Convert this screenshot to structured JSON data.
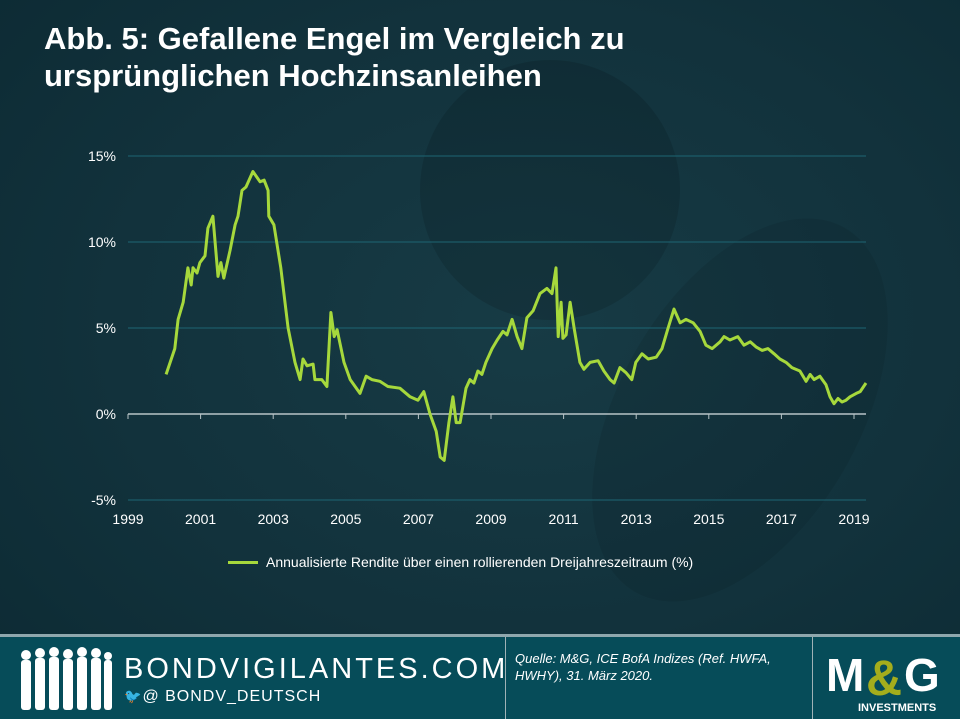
{
  "title": "Abb. 5: Gefallene Engel im Vergleich zu ursprünglichen Hochzinsanleihen",
  "chart_data": {
    "type": "line",
    "title": "Abb. 5: Gefallene Engel im Vergleich zu ursprünglichen Hochzinsanleihen",
    "xlabel": "",
    "ylabel": "",
    "xlim": [
      1999,
      2019.3
    ],
    "ylim": [
      -5,
      15
    ],
    "x_ticks": [
      "1999",
      "2001",
      "2003",
      "2005",
      "2007",
      "2009",
      "2011",
      "2013",
      "2015",
      "2017",
      "2019"
    ],
    "x_tick_values": [
      1999,
      2001,
      2003,
      2005,
      2007,
      2009,
      2011,
      2013,
      2015,
      2017,
      2019
    ],
    "y_ticks": [
      "15%",
      "10%",
      "5%",
      "0%",
      "-5%"
    ],
    "y_tick_values": [
      15,
      10,
      5,
      0,
      -5
    ],
    "grid": "horizontal",
    "legend_position": "bottom",
    "series": [
      {
        "name": "Annualisierte Rendite über einen rollierenden Dreijahreszeitraum (%)",
        "color": "#a6d83c",
        "x": [
          2000.05,
          2000.29,
          2000.38,
          2000.52,
          2000.65,
          2000.74,
          2000.79,
          2000.9,
          2000.98,
          2001.12,
          2001.2,
          2001.34,
          2001.48,
          2001.56,
          2001.64,
          2001.81,
          2001.95,
          2002.03,
          2002.14,
          2002.25,
          2002.44,
          2002.64,
          2002.75,
          2002.86,
          2002.88,
          2003.02,
          2003.21,
          2003.41,
          2003.6,
          2003.74,
          2003.82,
          2003.93,
          2004.1,
          2004.15,
          2004.34,
          2004.48,
          2004.59,
          2004.68,
          2004.76,
          2004.95,
          2005.12,
          2005.39,
          2005.56,
          2005.72,
          2005.94,
          2006.16,
          2006.49,
          2006.77,
          2006.99,
          2007.15,
          2007.32,
          2007.49,
          2007.6,
          2007.71,
          2007.84,
          2007.95,
          2008.04,
          2008.15,
          2008.31,
          2008.42,
          2008.53,
          2008.64,
          2008.75,
          2008.86,
          2009.03,
          2009.17,
          2009.33,
          2009.44,
          2009.58,
          2009.72,
          2009.85,
          2009.99,
          2010.16,
          2010.35,
          2010.54,
          2010.68,
          2010.79,
          2010.85,
          2010.93,
          2010.98,
          2011.07,
          2011.18,
          2011.29,
          2011.45,
          2011.56,
          2011.73,
          2011.95,
          2012.11,
          2012.28,
          2012.39,
          2012.55,
          2012.72,
          2012.88,
          2012.99,
          2013.16,
          2013.33,
          2013.55,
          2013.71,
          2013.88,
          2014.04,
          2014.21,
          2014.37,
          2014.57,
          2014.76,
          2014.92,
          2015.09,
          2015.31,
          2015.42,
          2015.58,
          2015.8,
          2015.97,
          2016.14,
          2016.3,
          2016.47,
          2016.63,
          2016.8,
          2016.96,
          2017.13,
          2017.29,
          2017.51,
          2017.68,
          2017.79,
          2017.9,
          2018.06,
          2018.23,
          2018.34,
          2018.45,
          2018.56,
          2018.67,
          2018.78,
          2018.89,
          2019.06,
          2019.17,
          2019.33
        ],
        "y": [
          2.3,
          3.8,
          5.5,
          6.5,
          8.5,
          7.5,
          8.5,
          8.2,
          8.8,
          9.2,
          10.8,
          11.5,
          8.0,
          8.8,
          7.9,
          9.5,
          11.0,
          11.5,
          13.0,
          13.2,
          14.1,
          13.5,
          13.6,
          13.0,
          11.5,
          11.0,
          8.5,
          5.0,
          3.0,
          2.0,
          3.2,
          2.8,
          2.9,
          2.0,
          2.0,
          1.6,
          5.9,
          4.5,
          4.9,
          3.0,
          2.0,
          1.2,
          2.2,
          2.0,
          1.9,
          1.6,
          1.5,
          1.0,
          0.8,
          1.3,
          0.0,
          -1.0,
          -2.5,
          -2.7,
          -0.5,
          1.0,
          -0.5,
          -0.5,
          1.5,
          2.0,
          1.8,
          2.5,
          2.3,
          3.0,
          3.8,
          4.3,
          4.8,
          4.6,
          5.5,
          4.5,
          3.8,
          5.6,
          6.0,
          7.0,
          7.3,
          7.0,
          8.5,
          4.5,
          6.5,
          4.4,
          4.6,
          6.5,
          5.0,
          3.0,
          2.6,
          3.0,
          3.1,
          2.5,
          2.0,
          1.8,
          2.7,
          2.4,
          2.0,
          3.0,
          3.5,
          3.2,
          3.3,
          3.8,
          5.0,
          6.1,
          5.3,
          5.5,
          5.3,
          4.8,
          4.0,
          3.8,
          4.2,
          4.5,
          4.3,
          4.5,
          4.0,
          4.2,
          3.9,
          3.7,
          3.8,
          3.5,
          3.2,
          3.0,
          2.7,
          2.5,
          1.9,
          2.3,
          2.0,
          2.2,
          1.7,
          1.0,
          0.6,
          0.9,
          0.7,
          0.8,
          1.0,
          1.2,
          1.3,
          1.8
        ]
      }
    ]
  },
  "footer": {
    "site": "BONDVIGILANTES.COM",
    "handle": "@ BONDV_DEUTSCH",
    "source": "Quelle: M&G, ICE BofA Indizes (Ref. HWFA, HWHY), 31. März 2020.",
    "logo_text": "M&G",
    "logo_sub": "INVESTMENTS"
  }
}
